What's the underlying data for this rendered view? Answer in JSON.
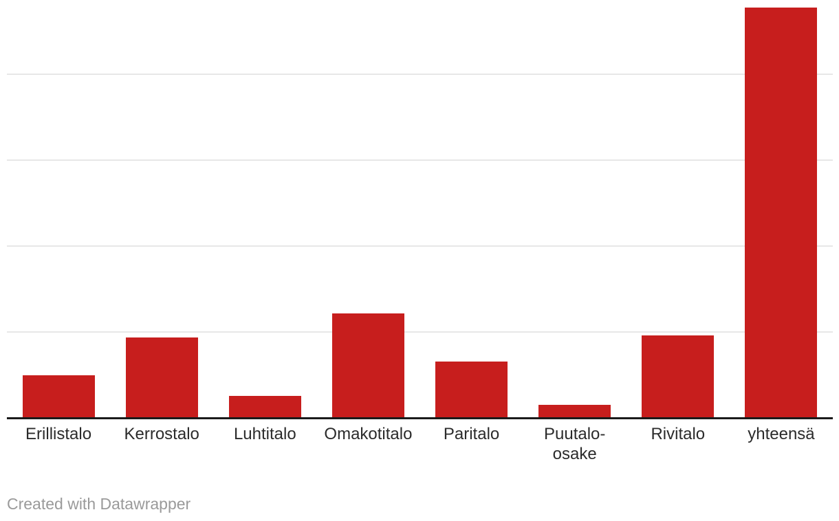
{
  "chart_data": {
    "type": "bar",
    "title": "",
    "xlabel": "",
    "ylabel": "",
    "categories": [
      "Erillistalo",
      "Kerrostalo",
      "Luhtitalo",
      "Omakotitalo",
      "Paritalo",
      "Puutalo-osake",
      "Rivitalo",
      "yhteensä"
    ],
    "values": [
      25,
      47,
      13,
      61,
      33,
      7.5,
      48,
      239
    ],
    "label_lines": [
      [
        "Erillistalo"
      ],
      [
        "Kerrostalo"
      ],
      [
        "Luhtitalo"
      ],
      [
        "Omakotitalo"
      ],
      [
        "Paritalo"
      ],
      [
        "Puutalo-",
        "osake"
      ],
      [
        "Rivitalo"
      ],
      [
        "yhteensä"
      ]
    ],
    "ylim": [
      0,
      240
    ],
    "gridline_values": [
      50,
      100,
      150,
      200
    ],
    "grid": "horizontal",
    "y_tick_labels_visible": false,
    "legend": "none",
    "bar_color": "#c71e1d"
  },
  "colors": {
    "bar": "#c71e1d",
    "gridline": "#e7e7e7",
    "axis_line": "#1a1a1a",
    "label_text": "#2b2b2b",
    "attribution_text": "#9a9a9a",
    "background": "#ffffff"
  },
  "footer": {
    "attribution": "Created with Datawrapper"
  }
}
